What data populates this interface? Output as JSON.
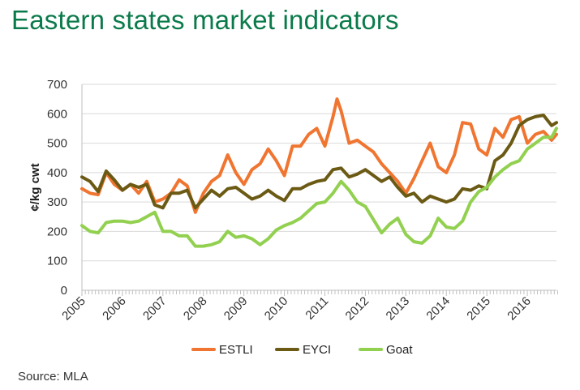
{
  "title": "Eastern states market indicators",
  "source": "Source: MLA",
  "chart_data": {
    "type": "line",
    "ylabel": "¢/kg cwt",
    "xlabel": "",
    "ylim": [
      0,
      700
    ],
    "yticks": [
      0,
      100,
      200,
      300,
      400,
      500,
      600,
      700
    ],
    "xlim": [
      2005,
      2016.72
    ],
    "xticks": [
      "2005",
      "2006",
      "2007",
      "2008",
      "2009",
      "2010",
      "2011",
      "2012",
      "2013",
      "2014",
      "2015",
      "2016"
    ],
    "grid": "horizontal",
    "legend": "bottom",
    "series": [
      {
        "name": "ESTLI",
        "color": "#f07530",
        "points": [
          [
            2005.0,
            345
          ],
          [
            2005.2,
            330
          ],
          [
            2005.4,
            325
          ],
          [
            2005.6,
            400
          ],
          [
            2005.8,
            360
          ],
          [
            2006.0,
            340
          ],
          [
            2006.2,
            360
          ],
          [
            2006.4,
            330
          ],
          [
            2006.6,
            370
          ],
          [
            2006.8,
            300
          ],
          [
            2007.0,
            310
          ],
          [
            2007.2,
            330
          ],
          [
            2007.4,
            375
          ],
          [
            2007.6,
            355
          ],
          [
            2007.8,
            265
          ],
          [
            2008.0,
            330
          ],
          [
            2008.2,
            370
          ],
          [
            2008.4,
            390
          ],
          [
            2008.6,
            460
          ],
          [
            2008.8,
            400
          ],
          [
            2009.0,
            360
          ],
          [
            2009.2,
            410
          ],
          [
            2009.4,
            430
          ],
          [
            2009.6,
            480
          ],
          [
            2009.8,
            440
          ],
          [
            2010.0,
            390
          ],
          [
            2010.2,
            490
          ],
          [
            2010.4,
            490
          ],
          [
            2010.6,
            530
          ],
          [
            2010.8,
            550
          ],
          [
            2011.0,
            490
          ],
          [
            2011.2,
            590
          ],
          [
            2011.3,
            650
          ],
          [
            2011.4,
            610
          ],
          [
            2011.6,
            500
          ],
          [
            2011.8,
            510
          ],
          [
            2012.0,
            490
          ],
          [
            2012.2,
            470
          ],
          [
            2012.4,
            430
          ],
          [
            2012.6,
            400
          ],
          [
            2012.8,
            370
          ],
          [
            2013.0,
            330
          ],
          [
            2013.2,
            380
          ],
          [
            2013.4,
            440
          ],
          [
            2013.6,
            500
          ],
          [
            2013.8,
            420
          ],
          [
            2014.0,
            400
          ],
          [
            2014.2,
            460
          ],
          [
            2014.4,
            570
          ],
          [
            2014.6,
            565
          ],
          [
            2014.8,
            480
          ],
          [
            2015.0,
            460
          ],
          [
            2015.2,
            550
          ],
          [
            2015.4,
            520
          ],
          [
            2015.6,
            580
          ],
          [
            2015.8,
            590
          ],
          [
            2016.0,
            500
          ],
          [
            2016.2,
            530
          ],
          [
            2016.4,
            540
          ],
          [
            2016.6,
            510
          ],
          [
            2016.72,
            530
          ]
        ]
      },
      {
        "name": "EYCI",
        "color": "#6b5a14",
        "points": [
          [
            2005.0,
            385
          ],
          [
            2005.2,
            370
          ],
          [
            2005.4,
            335
          ],
          [
            2005.6,
            405
          ],
          [
            2005.8,
            375
          ],
          [
            2006.0,
            340
          ],
          [
            2006.2,
            360
          ],
          [
            2006.4,
            350
          ],
          [
            2006.6,
            360
          ],
          [
            2006.8,
            290
          ],
          [
            2007.0,
            280
          ],
          [
            2007.2,
            330
          ],
          [
            2007.4,
            330
          ],
          [
            2007.6,
            340
          ],
          [
            2007.8,
            280
          ],
          [
            2008.0,
            310
          ],
          [
            2008.2,
            340
          ],
          [
            2008.4,
            320
          ],
          [
            2008.6,
            345
          ],
          [
            2008.8,
            350
          ],
          [
            2009.0,
            330
          ],
          [
            2009.2,
            310
          ],
          [
            2009.4,
            320
          ],
          [
            2009.6,
            340
          ],
          [
            2009.8,
            320
          ],
          [
            2010.0,
            305
          ],
          [
            2010.2,
            345
          ],
          [
            2010.4,
            345
          ],
          [
            2010.6,
            360
          ],
          [
            2010.8,
            370
          ],
          [
            2011.0,
            375
          ],
          [
            2011.2,
            410
          ],
          [
            2011.4,
            415
          ],
          [
            2011.6,
            385
          ],
          [
            2011.8,
            395
          ],
          [
            2012.0,
            410
          ],
          [
            2012.2,
            390
          ],
          [
            2012.4,
            370
          ],
          [
            2012.6,
            385
          ],
          [
            2012.8,
            350
          ],
          [
            2013.0,
            320
          ],
          [
            2013.2,
            330
          ],
          [
            2013.4,
            300
          ],
          [
            2013.6,
            320
          ],
          [
            2013.8,
            310
          ],
          [
            2014.0,
            300
          ],
          [
            2014.2,
            310
          ],
          [
            2014.4,
            345
          ],
          [
            2014.6,
            340
          ],
          [
            2014.8,
            355
          ],
          [
            2015.0,
            345
          ],
          [
            2015.2,
            440
          ],
          [
            2015.4,
            460
          ],
          [
            2015.6,
            500
          ],
          [
            2015.8,
            560
          ],
          [
            2016.0,
            580
          ],
          [
            2016.2,
            590
          ],
          [
            2016.4,
            595
          ],
          [
            2016.6,
            560
          ],
          [
            2016.72,
            570
          ]
        ]
      },
      {
        "name": "Goat",
        "color": "#92d050",
        "points": [
          [
            2005.0,
            220
          ],
          [
            2005.2,
            200
          ],
          [
            2005.4,
            195
          ],
          [
            2005.6,
            230
          ],
          [
            2005.8,
            235
          ],
          [
            2006.0,
            235
          ],
          [
            2006.2,
            230
          ],
          [
            2006.4,
            235
          ],
          [
            2006.6,
            250
          ],
          [
            2006.8,
            265
          ],
          [
            2007.0,
            200
          ],
          [
            2007.2,
            200
          ],
          [
            2007.4,
            185
          ],
          [
            2007.6,
            185
          ],
          [
            2007.8,
            150
          ],
          [
            2008.0,
            150
          ],
          [
            2008.2,
            155
          ],
          [
            2008.4,
            165
          ],
          [
            2008.6,
            200
          ],
          [
            2008.8,
            180
          ],
          [
            2009.0,
            185
          ],
          [
            2009.2,
            175
          ],
          [
            2009.4,
            155
          ],
          [
            2009.6,
            175
          ],
          [
            2009.8,
            205
          ],
          [
            2010.0,
            220
          ],
          [
            2010.2,
            230
          ],
          [
            2010.4,
            245
          ],
          [
            2010.6,
            270
          ],
          [
            2010.8,
            295
          ],
          [
            2011.0,
            300
          ],
          [
            2011.2,
            330
          ],
          [
            2011.4,
            370
          ],
          [
            2011.6,
            340
          ],
          [
            2011.8,
            300
          ],
          [
            2012.0,
            285
          ],
          [
            2012.2,
            240
          ],
          [
            2012.4,
            195
          ],
          [
            2012.6,
            225
          ],
          [
            2012.8,
            245
          ],
          [
            2013.0,
            190
          ],
          [
            2013.2,
            165
          ],
          [
            2013.4,
            160
          ],
          [
            2013.6,
            185
          ],
          [
            2013.8,
            245
          ],
          [
            2014.0,
            215
          ],
          [
            2014.2,
            210
          ],
          [
            2014.4,
            235
          ],
          [
            2014.6,
            300
          ],
          [
            2014.8,
            335
          ],
          [
            2015.0,
            350
          ],
          [
            2015.2,
            385
          ],
          [
            2015.4,
            410
          ],
          [
            2015.6,
            430
          ],
          [
            2015.8,
            440
          ],
          [
            2016.0,
            480
          ],
          [
            2016.2,
            500
          ],
          [
            2016.4,
            520
          ],
          [
            2016.6,
            520
          ],
          [
            2016.72,
            550
          ]
        ]
      }
    ]
  }
}
